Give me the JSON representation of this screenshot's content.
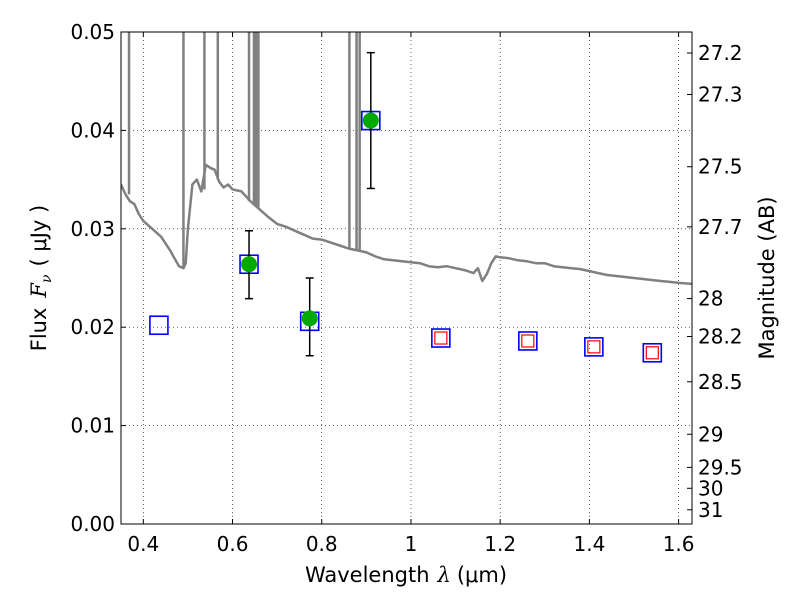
{
  "chart_data": {
    "type": "scatter",
    "xlabel": {
      "prefix": "Wavelength",
      "symbol": "λ",
      "unit": "(μm)"
    },
    "ylabel": {
      "prefix": "Flux",
      "symbol": "F",
      "subscript": "ν",
      "unit": "( μJy )"
    },
    "y2label": "Magnitude (AB)",
    "xlim": [
      0.35,
      1.63
    ],
    "ylim": [
      0.0,
      0.05
    ],
    "x_ticks": [
      0.4,
      0.6,
      0.8,
      1.0,
      1.2,
      1.4,
      1.6
    ],
    "x_tick_labels": [
      "0.4",
      "0.6",
      "0.8",
      "1",
      "1.2",
      "1.4",
      "1.6"
    ],
    "y_ticks": [
      0.0,
      0.01,
      0.02,
      0.03,
      0.04,
      0.05
    ],
    "y_tick_labels": [
      "0.00",
      "0.01",
      "0.02",
      "0.03",
      "0.04",
      "0.05"
    ],
    "y2_ticks": [
      27.2,
      27.3,
      27.5,
      27.7,
      28,
      28.2,
      28.5,
      29,
      29.5,
      30,
      31
    ],
    "y2_tick_labels": [
      "27.2",
      "27.3",
      "27.5",
      "27.7",
      "28",
      "28.2",
      "28.5",
      "29",
      "29.5",
      "30",
      "31"
    ],
    "grid": true,
    "series": [
      {
        "kind": "line",
        "color": "#808080",
        "points": [
          [
            0.35,
            0.0345
          ],
          [
            0.36,
            0.0335
          ],
          [
            0.37,
            0.0328
          ],
          [
            0.38,
            0.0325
          ],
          [
            0.39,
            0.0315
          ],
          [
            0.4,
            0.0308
          ],
          [
            0.42,
            0.03
          ],
          [
            0.44,
            0.0292
          ],
          [
            0.46,
            0.0278
          ],
          [
            0.47,
            0.027
          ],
          [
            0.48,
            0.0262
          ],
          [
            0.49,
            0.026
          ],
          [
            0.495,
            0.0265
          ],
          [
            0.5,
            0.03
          ],
          [
            0.51,
            0.0345
          ],
          [
            0.52,
            0.035
          ],
          [
            0.53,
            0.0338
          ],
          [
            0.54,
            0.0365
          ],
          [
            0.55,
            0.0362
          ],
          [
            0.56,
            0.036
          ],
          [
            0.57,
            0.0348
          ],
          [
            0.58,
            0.0342
          ],
          [
            0.59,
            0.0345
          ],
          [
            0.6,
            0.034
          ],
          [
            0.62,
            0.0338
          ],
          [
            0.64,
            0.0328
          ],
          [
            0.66,
            0.032
          ],
          [
            0.68,
            0.0312
          ],
          [
            0.7,
            0.0305
          ],
          [
            0.72,
            0.0302
          ],
          [
            0.74,
            0.0298
          ],
          [
            0.76,
            0.0294
          ],
          [
            0.78,
            0.029
          ],
          [
            0.8,
            0.0289
          ],
          [
            0.82,
            0.0286
          ],
          [
            0.84,
            0.0283
          ],
          [
            0.86,
            0.028
          ],
          [
            0.88,
            0.0278
          ],
          [
            0.9,
            0.0276
          ],
          [
            0.92,
            0.0272
          ],
          [
            0.94,
            0.0269
          ],
          [
            0.96,
            0.0268
          ],
          [
            0.98,
            0.0267
          ],
          [
            1.0,
            0.0266
          ],
          [
            1.02,
            0.0265
          ],
          [
            1.04,
            0.0262
          ],
          [
            1.06,
            0.0261
          ],
          [
            1.08,
            0.0262
          ],
          [
            1.1,
            0.026
          ],
          [
            1.12,
            0.0258
          ],
          [
            1.14,
            0.0255
          ],
          [
            1.15,
            0.026
          ],
          [
            1.16,
            0.0247
          ],
          [
            1.17,
            0.0254
          ],
          [
            1.18,
            0.0265
          ],
          [
            1.19,
            0.0272
          ],
          [
            1.2,
            0.0271
          ],
          [
            1.22,
            0.027
          ],
          [
            1.24,
            0.0268
          ],
          [
            1.26,
            0.0267
          ],
          [
            1.28,
            0.0265
          ],
          [
            1.3,
            0.0265
          ],
          [
            1.32,
            0.0262
          ],
          [
            1.34,
            0.0261
          ],
          [
            1.36,
            0.026
          ],
          [
            1.38,
            0.0259
          ],
          [
            1.4,
            0.0257
          ],
          [
            1.42,
            0.0255
          ],
          [
            1.44,
            0.0253
          ],
          [
            1.46,
            0.0252
          ],
          [
            1.48,
            0.0251
          ],
          [
            1.5,
            0.025
          ],
          [
            1.52,
            0.0249
          ],
          [
            1.54,
            0.0248
          ],
          [
            1.56,
            0.0247
          ],
          [
            1.58,
            0.0246
          ],
          [
            1.6,
            0.0245
          ],
          [
            1.63,
            0.0244
          ]
        ],
        "spikes": [
          [
            0.368,
            0.0335,
            0.05
          ],
          [
            0.49,
            0.026,
            0.05
          ],
          [
            0.537,
            0.034,
            0.05
          ],
          [
            0.567,
            0.035,
            0.05
          ],
          [
            0.637,
            0.0328,
            0.05
          ],
          [
            0.648,
            0.0325,
            0.05
          ],
          [
            0.653,
            0.0323,
            0.05
          ],
          [
            0.658,
            0.0322,
            0.05
          ],
          [
            0.862,
            0.028,
            0.05
          ],
          [
            0.878,
            0.0279,
            0.05
          ],
          [
            0.885,
            0.0278,
            0.05
          ]
        ]
      },
      {
        "kind": "squares",
        "color": "#0000ff",
        "x": [
          0.435,
          0.637,
          0.773,
          0.91,
          1.067,
          1.262,
          1.41,
          1.541
        ],
        "y": [
          0.0202,
          0.0264,
          0.0206,
          0.041,
          0.0189,
          0.0186,
          0.018,
          0.0174
        ]
      },
      {
        "kind": "squares_small",
        "color": "#ff0000",
        "x": [
          1.067,
          1.262,
          1.41,
          1.541
        ],
        "y": [
          0.0189,
          0.0186,
          0.018,
          0.0174
        ]
      },
      {
        "kind": "errorbar_circles",
        "color": "#00aa00",
        "errcolor": "#000000",
        "x": [
          0.637,
          0.773,
          0.91
        ],
        "y": [
          0.0264,
          0.0209,
          0.041
        ],
        "yerr_low": [
          0.0035,
          0.0038,
          0.0069
        ],
        "yerr_high": [
          0.0034,
          0.0041,
          0.0069
        ]
      }
    ]
  }
}
